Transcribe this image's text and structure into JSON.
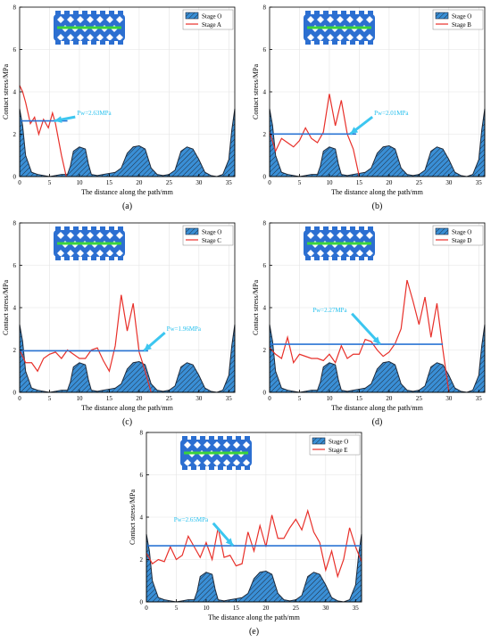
{
  "shared": {
    "xlabel": "The distance along the path/mm",
    "ylabel": "Contact stress/MPa",
    "xticks": [
      0,
      5,
      10,
      15,
      20,
      25,
      30,
      35
    ],
    "yticks": [
      0,
      2,
      4,
      6,
      8
    ],
    "colors": {
      "stage_o_fill": "#3a8fd6",
      "stage_o_edge": "#1f2a3a",
      "stress_line": "#e8302a",
      "pw_line": "#2a74d4",
      "arrow": "#3cc6f0",
      "pw_text": "#27c0ee",
      "structure": "#2c6fd1",
      "green_path": "#3bd43b"
    }
  },
  "chart_data": [
    {
      "type": "area",
      "panel_label": "(a)",
      "xlim": [
        0,
        36
      ],
      "ylim": [
        0,
        8
      ],
      "legend": [
        "Stage O",
        "Stage A"
      ],
      "pw_label": "Pw=2.63MPa",
      "pw_value": 2.63,
      "pw_x": [
        0,
        8
      ],
      "arrow_target": [
        5.8,
        2.63
      ],
      "arrow_label_at": [
        9.6,
        2.9
      ],
      "series": [
        {
          "name": "Stage O",
          "x": [
            0,
            0.5,
            1,
            2,
            3,
            4,
            5,
            6,
            7,
            8,
            8.5,
            9,
            10,
            11,
            11.5,
            12,
            13,
            14,
            15,
            16,
            17,
            18,
            19,
            20,
            21,
            22,
            23,
            24,
            25,
            26,
            27,
            28,
            29,
            30,
            31,
            32,
            33,
            34,
            35,
            35.5,
            36
          ],
          "y": [
            3.2,
            2.4,
            1.0,
            0.2,
            0.1,
            0.05,
            0,
            0.05,
            0.1,
            0.1,
            0.5,
            1.2,
            1.4,
            1.3,
            0.6,
            0.1,
            0.05,
            0.1,
            0.15,
            0.2,
            0.4,
            1.1,
            1.4,
            1.45,
            1.3,
            0.4,
            0.1,
            0.05,
            0.1,
            0.3,
            1.2,
            1.4,
            1.3,
            0.8,
            0.2,
            0.05,
            0,
            0.1,
            0.8,
            2.2,
            3.2
          ]
        },
        {
          "name": "Stage A",
          "x": [
            0,
            0.5,
            1,
            1.8,
            2.5,
            3.2,
            4,
            4.8,
            5.5,
            6,
            7,
            7.8
          ],
          "y": [
            4.3,
            4.0,
            3.5,
            2.5,
            2.8,
            2.0,
            2.7,
            2.3,
            3.0,
            2.5,
            1.0,
            0
          ]
        }
      ]
    },
    {
      "type": "area",
      "panel_label": "(b)",
      "xlim": [
        0,
        36
      ],
      "ylim": [
        0,
        8
      ],
      "legend": [
        "Stage O",
        "Stage B"
      ],
      "pw_label": "Pw=2.01MPa",
      "pw_value": 2.01,
      "pw_x": [
        0,
        14.5
      ],
      "arrow_target": [
        13.5,
        2.01
      ],
      "arrow_label_at": [
        17.5,
        2.9
      ],
      "series": [
        {
          "name": "Stage O",
          "x": [
            0,
            0.5,
            1,
            2,
            3,
            4,
            5,
            6,
            7,
            8,
            8.5,
            9,
            10,
            11,
            11.5,
            12,
            13,
            14,
            15,
            16,
            17,
            18,
            19,
            20,
            21,
            22,
            23,
            24,
            25,
            26,
            27,
            28,
            29,
            30,
            31,
            32,
            33,
            34,
            35,
            35.5,
            36
          ],
          "y": [
            3.2,
            2.4,
            1.0,
            0.2,
            0.1,
            0.05,
            0,
            0.05,
            0.1,
            0.1,
            0.5,
            1.2,
            1.4,
            1.3,
            0.6,
            0.1,
            0.05,
            0.1,
            0.15,
            0.2,
            0.4,
            1.1,
            1.4,
            1.45,
            1.3,
            0.4,
            0.1,
            0.05,
            0.1,
            0.3,
            1.2,
            1.4,
            1.3,
            0.8,
            0.2,
            0.05,
            0,
            0.1,
            0.8,
            2.2,
            3.2
          ]
        },
        {
          "name": "Stage B",
          "x": [
            0,
            1,
            2,
            3,
            4,
            5,
            6,
            7,
            8,
            9,
            10,
            11,
            12,
            13,
            14,
            15
          ],
          "y": [
            2.1,
            1.2,
            1.8,
            1.6,
            1.4,
            1.7,
            2.3,
            1.8,
            1.6,
            2.1,
            3.9,
            2.4,
            3.6,
            2.0,
            1.3,
            0
          ]
        }
      ]
    },
    {
      "type": "area",
      "panel_label": "(c)",
      "xlim": [
        0,
        36
      ],
      "ylim": [
        0,
        8
      ],
      "legend": [
        "Stage O",
        "Stage C"
      ],
      "pw_label": "Pw=1.96MPa",
      "pw_value": 1.96,
      "pw_x": [
        0,
        21.5
      ],
      "arrow_target": [
        20.8,
        1.96
      ],
      "arrow_label_at": [
        24.6,
        2.9
      ],
      "series": [
        {
          "name": "Stage O",
          "x": [
            0,
            0.5,
            1,
            2,
            3,
            4,
            5,
            6,
            7,
            8,
            8.5,
            9,
            10,
            11,
            11.5,
            12,
            13,
            14,
            15,
            16,
            17,
            18,
            19,
            20,
            21,
            22,
            23,
            24,
            25,
            26,
            27,
            28,
            29,
            30,
            31,
            32,
            33,
            34,
            35,
            35.5,
            36
          ],
          "y": [
            3.2,
            2.4,
            1.0,
            0.2,
            0.1,
            0.05,
            0,
            0.05,
            0.1,
            0.1,
            0.5,
            1.2,
            1.4,
            1.3,
            0.6,
            0.1,
            0.05,
            0.1,
            0.15,
            0.2,
            0.4,
            1.1,
            1.4,
            1.45,
            1.3,
            0.4,
            0.1,
            0.05,
            0.1,
            0.3,
            1.2,
            1.4,
            1.3,
            0.8,
            0.2,
            0.05,
            0,
            0.1,
            0.8,
            2.2,
            3.2
          ]
        },
        {
          "name": "Stage C",
          "x": [
            0,
            1,
            2,
            3,
            4,
            5,
            6,
            7,
            8,
            9,
            10,
            11,
            12,
            13,
            14,
            15,
            16,
            17,
            18,
            19,
            20,
            21,
            22
          ],
          "y": [
            2.0,
            1.4,
            1.4,
            1.0,
            1.6,
            1.8,
            1.9,
            1.6,
            2.0,
            1.8,
            1.6,
            1.6,
            2.0,
            2.1,
            1.5,
            1.0,
            2.2,
            4.6,
            2.9,
            4.2,
            1.9,
            1.0,
            0
          ]
        }
      ]
    },
    {
      "type": "area",
      "panel_label": "(d)",
      "xlim": [
        0,
        36
      ],
      "ylim": [
        0,
        8
      ],
      "legend": [
        "Stage O",
        "Stage D"
      ],
      "pw_label": "Pw=2.27MPa",
      "pw_value": 2.27,
      "pw_x": [
        0,
        29
      ],
      "arrow_target": [
        18.5,
        2.27
      ],
      "arrow_label_at": [
        7.2,
        3.8
      ],
      "series": [
        {
          "name": "Stage O",
          "x": [
            0,
            0.5,
            1,
            2,
            3,
            4,
            5,
            6,
            7,
            8,
            8.5,
            9,
            10,
            11,
            11.5,
            12,
            13,
            14,
            15,
            16,
            17,
            18,
            19,
            20,
            21,
            22,
            23,
            24,
            25,
            26,
            27,
            28,
            29,
            30,
            31,
            32,
            33,
            34,
            35,
            35.5,
            36
          ],
          "y": [
            3.2,
            2.4,
            1.0,
            0.2,
            0.1,
            0.05,
            0,
            0.05,
            0.1,
            0.1,
            0.5,
            1.2,
            1.4,
            1.3,
            0.6,
            0.1,
            0.05,
            0.1,
            0.15,
            0.2,
            0.4,
            1.1,
            1.4,
            1.45,
            1.3,
            0.4,
            0.1,
            0.05,
            0.1,
            0.3,
            1.2,
            1.4,
            1.3,
            0.8,
            0.2,
            0.05,
            0,
            0.1,
            0.8,
            2.2,
            3.2
          ]
        },
        {
          "name": "Stage D",
          "x": [
            0,
            1,
            2,
            3,
            4,
            5,
            6,
            7,
            8,
            9,
            10,
            11,
            12,
            13,
            14,
            15,
            16,
            17,
            18,
            19,
            20,
            21,
            22,
            23,
            24,
            25,
            26,
            27,
            28,
            29,
            30
          ],
          "y": [
            2.1,
            1.8,
            1.6,
            2.6,
            1.4,
            1.8,
            1.7,
            1.6,
            1.6,
            1.5,
            1.8,
            1.4,
            2.2,
            1.6,
            1.8,
            1.8,
            2.5,
            2.4,
            2.0,
            1.7,
            1.9,
            2.3,
            3.0,
            5.3,
            4.3,
            3.2,
            4.5,
            2.6,
            4.2,
            2.0,
            0
          ]
        }
      ]
    },
    {
      "type": "area",
      "panel_label": "(e)",
      "xlim": [
        0,
        36
      ],
      "ylim": [
        0,
        8
      ],
      "legend": [
        "Stage O",
        "Stage E"
      ],
      "pw_label": "Pw=2.65MPa",
      "pw_value": 2.65,
      "pw_x": [
        0,
        36
      ],
      "arrow_target": [
        14.5,
        2.65
      ],
      "arrow_label_at": [
        4.6,
        3.8
      ],
      "series": [
        {
          "name": "Stage O",
          "x": [
            0,
            0.5,
            1,
            2,
            3,
            4,
            5,
            6,
            7,
            8,
            8.5,
            9,
            10,
            11,
            11.5,
            12,
            13,
            14,
            15,
            16,
            17,
            18,
            19,
            20,
            21,
            22,
            23,
            24,
            25,
            26,
            27,
            28,
            29,
            30,
            31,
            32,
            33,
            34,
            35,
            35.5,
            36
          ],
          "y": [
            3.2,
            2.4,
            1.0,
            0.2,
            0.1,
            0.05,
            0,
            0.05,
            0.1,
            0.1,
            0.5,
            1.2,
            1.4,
            1.3,
            0.6,
            0.1,
            0.05,
            0.1,
            0.15,
            0.2,
            0.4,
            1.1,
            1.4,
            1.45,
            1.3,
            0.4,
            0.1,
            0.05,
            0.1,
            0.3,
            1.2,
            1.4,
            1.3,
            0.8,
            0.2,
            0.05,
            0,
            0.1,
            0.8,
            2.2,
            3.2
          ]
        },
        {
          "name": "Stage E",
          "x": [
            0,
            1,
            2,
            3,
            4,
            5,
            6,
            7,
            8,
            9,
            10,
            11,
            12,
            13,
            14,
            15,
            16,
            17,
            18,
            19,
            20,
            21,
            22,
            23,
            24,
            25,
            26,
            27,
            28,
            29,
            30,
            31,
            32,
            33,
            34,
            35,
            36
          ],
          "y": [
            2.3,
            1.8,
            2.0,
            1.9,
            2.6,
            2.0,
            2.2,
            3.1,
            2.6,
            2.1,
            2.8,
            2.0,
            3.5,
            2.1,
            2.2,
            1.7,
            1.8,
            3.3,
            2.4,
            3.6,
            2.6,
            4.1,
            3.0,
            3.0,
            3.5,
            3.9,
            3.4,
            4.3,
            3.3,
            2.8,
            1.5,
            2.4,
            1.2,
            2.0,
            3.5,
            2.6,
            1.9
          ]
        }
      ]
    }
  ]
}
